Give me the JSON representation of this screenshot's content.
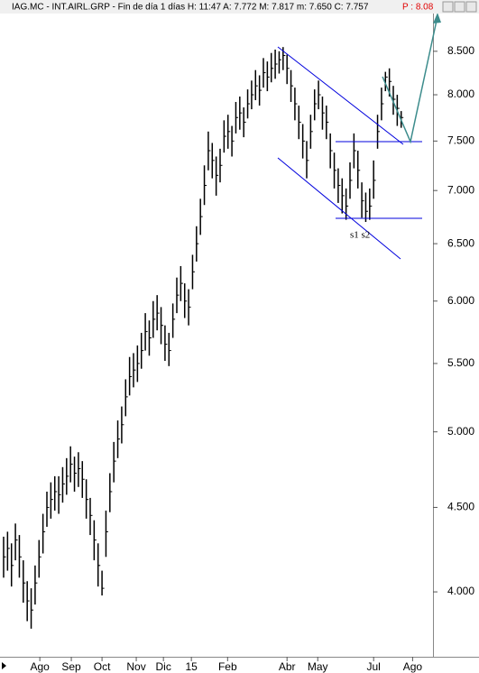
{
  "chart_data": {
    "type": "ohlc",
    "title": "IAG.MC - INT.AIRL.GRP - Fin de día 1 días H: 11:47 A: 7.772 M: 7.817 m: 7.650 C: 7.757",
    "price_label": "P : 8.08",
    "annotation": "s1 s2",
    "log_scale": true,
    "color": "#000000",
    "x": [
      0,
      1,
      2,
      3,
      4,
      5,
      6,
      7,
      8,
      9,
      10,
      11,
      12,
      13,
      14,
      15,
      16,
      17,
      18,
      19,
      20,
      21,
      22,
      23,
      24,
      25,
      26,
      27,
      28,
      29,
      30,
      31,
      32,
      33,
      34,
      35,
      36,
      37,
      38,
      39,
      40,
      41,
      42,
      43,
      44,
      45,
      46,
      47,
      48,
      49,
      50,
      51,
      52,
      53,
      54,
      55,
      56,
      57,
      58,
      59,
      60,
      61,
      62,
      63,
      64,
      65,
      66,
      67,
      68,
      69,
      70,
      71,
      72,
      73,
      74,
      75,
      76,
      77,
      78,
      79,
      80,
      81,
      82,
      83,
      84,
      85,
      86,
      87,
      88,
      89,
      90,
      91,
      92,
      93,
      94,
      95,
      96,
      97,
      98,
      99,
      100,
      101
    ],
    "high": [
      4.32,
      4.35,
      4.28,
      4.4,
      4.33,
      4.18,
      4.06,
      4.02,
      4.15,
      4.3,
      4.46,
      4.6,
      4.66,
      4.7,
      4.7,
      4.76,
      4.82,
      4.9,
      4.83,
      4.86,
      4.8,
      4.68,
      4.56,
      4.42,
      4.28,
      4.12,
      4.48,
      4.72,
      4.93,
      5.08,
      5.18,
      5.38,
      5.55,
      5.58,
      5.64,
      5.74,
      5.9,
      5.84,
      6.0,
      6.05,
      5.95,
      5.8,
      5.74,
      5.98,
      6.2,
      6.3,
      6.15,
      6.1,
      6.4,
      6.66,
      6.92,
      7.25,
      7.6,
      7.48,
      7.34,
      7.42,
      7.72,
      7.78,
      7.66,
      7.92,
      7.98,
      7.86,
      8.06,
      8.16,
      8.28,
      8.22,
      8.42,
      8.38,
      8.48,
      8.52,
      8.5,
      8.55,
      8.46,
      8.28,
      8.08,
      7.88,
      7.68,
      7.5,
      7.78,
      8.06,
      8.16,
      7.98,
      7.88,
      7.58,
      7.38,
      7.22,
      7.12,
      7.02,
      7.28,
      7.58,
      7.4,
      7.08,
      6.98,
      7.02,
      7.3,
      7.78,
      8.08,
      8.26,
      8.3,
      8.1,
      8.0,
      7.82
    ],
    "low": [
      4.08,
      4.12,
      4.03,
      4.18,
      4.08,
      3.94,
      3.84,
      3.8,
      3.93,
      4.08,
      4.22,
      4.38,
      4.43,
      4.48,
      4.46,
      4.53,
      4.58,
      4.66,
      4.6,
      4.63,
      4.56,
      4.43,
      4.33,
      4.18,
      4.03,
      3.98,
      4.2,
      4.47,
      4.66,
      4.82,
      4.92,
      5.11,
      5.26,
      5.32,
      5.36,
      5.46,
      5.6,
      5.56,
      5.7,
      5.76,
      5.65,
      5.52,
      5.48,
      5.7,
      5.9,
      6.0,
      5.86,
      5.8,
      6.1,
      6.34,
      6.58,
      6.86,
      7.2,
      7.12,
      6.95,
      7.08,
      7.38,
      7.42,
      7.34,
      7.58,
      7.62,
      7.54,
      7.74,
      7.84,
      7.94,
      7.88,
      8.08,
      8.04,
      8.14,
      8.18,
      8.24,
      8.28,
      8.12,
      7.92,
      7.72,
      7.52,
      7.32,
      7.12,
      7.42,
      7.72,
      7.84,
      7.62,
      7.52,
      7.22,
      7.02,
      6.88,
      6.78,
      6.72,
      6.92,
      7.22,
      7.02,
      6.74,
      6.7,
      6.72,
      6.92,
      7.42,
      7.72,
      8.04,
      7.98,
      7.78,
      7.66,
      7.64
    ],
    "close": [
      4.2,
      4.25,
      4.15,
      4.3,
      4.2,
      4.05,
      3.95,
      3.9,
      4.05,
      4.2,
      4.35,
      4.5,
      4.55,
      4.6,
      4.58,
      4.65,
      4.7,
      4.78,
      4.72,
      4.75,
      4.68,
      4.55,
      4.45,
      4.3,
      4.15,
      4.02,
      4.35,
      4.6,
      4.8,
      4.95,
      5.05,
      5.25,
      5.4,
      5.45,
      5.5,
      5.6,
      5.75,
      5.7,
      5.85,
      5.9,
      5.8,
      5.65,
      5.6,
      5.85,
      6.05,
      6.15,
      6.0,
      5.95,
      6.25,
      6.5,
      6.75,
      7.05,
      7.4,
      7.3,
      7.15,
      7.25,
      7.55,
      7.6,
      7.5,
      7.75,
      7.8,
      7.7,
      7.9,
      8.0,
      8.1,
      8.05,
      8.25,
      8.2,
      8.3,
      8.35,
      8.4,
      8.45,
      8.3,
      8.1,
      7.9,
      7.7,
      7.5,
      7.3,
      7.6,
      7.9,
      8.0,
      7.8,
      7.7,
      7.4,
      7.2,
      7.05,
      6.95,
      6.85,
      7.1,
      7.4,
      7.2,
      6.9,
      6.8,
      6.85,
      7.1,
      7.6,
      7.9,
      8.2,
      8.15,
      7.95,
      7.85,
      7.75
    ],
    "xlim": [
      0,
      110
    ],
    "xticks": [
      {
        "value": 9.2,
        "label": "Ago"
      },
      {
        "value": 17.2,
        "label": "Sep"
      },
      {
        "value": 25,
        "label": "Oct"
      },
      {
        "value": 33.7,
        "label": "Nov"
      },
      {
        "value": 40.6,
        "label": "Dic"
      },
      {
        "value": 47.7,
        "label": "15"
      },
      {
        "value": 56.9,
        "label": "Feb"
      },
      {
        "value": 72,
        "label": "Abr"
      },
      {
        "value": 79.8,
        "label": "May"
      },
      {
        "value": 94,
        "label": "Jul"
      },
      {
        "value": 103.9,
        "label": "Ago"
      }
    ],
    "ylim": [
      3.654,
      9.13
    ],
    "yticks": [
      {
        "value": 4,
        "label": "4.000"
      },
      {
        "value": 4.5,
        "label": "4.500"
      },
      {
        "value": 5,
        "label": "5.000"
      },
      {
        "value": 5.5,
        "label": "5.500"
      },
      {
        "value": 6,
        "label": "6.000"
      },
      {
        "value": 6.5,
        "label": "6.500"
      },
      {
        "value": 7,
        "label": "7.000"
      },
      {
        "value": 7.5,
        "label": "7.500"
      },
      {
        "value": 8,
        "label": "8.000"
      },
      {
        "value": 8.5,
        "label": "8.500"
      }
    ]
  }
}
